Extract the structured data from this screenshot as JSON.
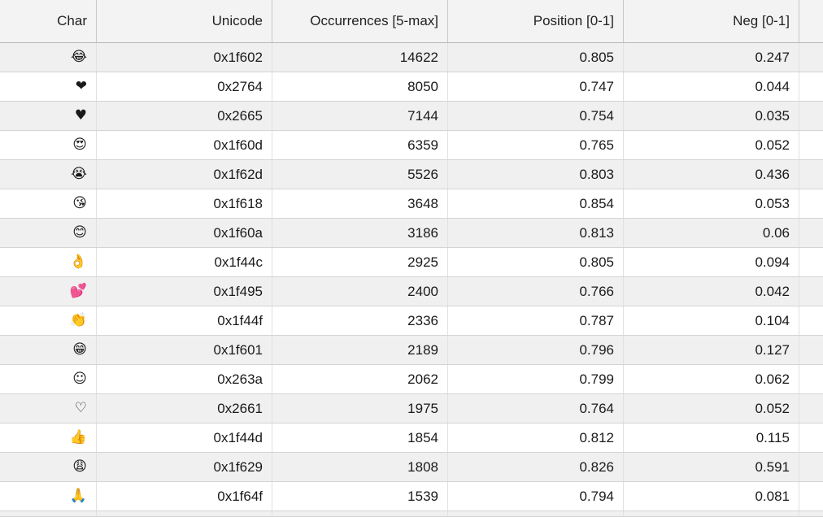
{
  "columns": [
    "Char",
    "Unicode",
    "Occurrences [5-max]",
    "Position [0-1]",
    "Neg [0-1]"
  ],
  "rows": [
    {
      "char": "😂",
      "icon": "face-with-tears-of-joy-icon",
      "unicode": "0x1f602",
      "occurrences": "14622",
      "position": "0.805",
      "neg": "0.247"
    },
    {
      "char": "❤",
      "icon": "heavy-black-heart-icon",
      "unicode": "0x2764",
      "occurrences": "8050",
      "position": "0.747",
      "neg": "0.044"
    },
    {
      "char": "♥",
      "icon": "black-heart-suit-icon",
      "unicode": "0x2665",
      "occurrences": "7144",
      "position": "0.754",
      "neg": "0.035"
    },
    {
      "char": "😍",
      "icon": "heart-eyes-face-icon",
      "unicode": "0x1f60d",
      "occurrences": "6359",
      "position": "0.765",
      "neg": "0.052"
    },
    {
      "char": "😭",
      "icon": "loudly-crying-face-icon",
      "unicode": "0x1f62d",
      "occurrences": "5526",
      "position": "0.803",
      "neg": "0.436"
    },
    {
      "char": "😘",
      "icon": "face-blowing-kiss-icon",
      "unicode": "0x1f618",
      "occurrences": "3648",
      "position": "0.854",
      "neg": "0.053"
    },
    {
      "char": "😊",
      "icon": "smiling-face-with-smiling-eyes-icon",
      "unicode": "0x1f60a",
      "occurrences": "3186",
      "position": "0.813",
      "neg": "0.06"
    },
    {
      "char": "👌",
      "icon": "ok-hand-icon",
      "unicode": "0x1f44c",
      "occurrences": "2925",
      "position": "0.805",
      "neg": "0.094"
    },
    {
      "char": "💕",
      "icon": "two-hearts-icon",
      "unicode": "0x1f495",
      "occurrences": "2400",
      "position": "0.766",
      "neg": "0.042"
    },
    {
      "char": "👏",
      "icon": "clapping-hands-icon",
      "unicode": "0x1f44f",
      "occurrences": "2336",
      "position": "0.787",
      "neg": "0.104"
    },
    {
      "char": "😁",
      "icon": "beaming-face-icon",
      "unicode": "0x1f601",
      "occurrences": "2189",
      "position": "0.796",
      "neg": "0.127"
    },
    {
      "char": "☺",
      "icon": "white-smiling-face-icon",
      "unicode": "0x263a",
      "occurrences": "2062",
      "position": "0.799",
      "neg": "0.062"
    },
    {
      "char": "♡",
      "icon": "white-heart-suit-icon",
      "unicode": "0x2661",
      "occurrences": "1975",
      "position": "0.764",
      "neg": "0.052"
    },
    {
      "char": "👍",
      "icon": "thumbs-up-icon",
      "unicode": "0x1f44d",
      "occurrences": "1854",
      "position": "0.812",
      "neg": "0.115"
    },
    {
      "char": "😩",
      "icon": "weary-face-icon",
      "unicode": "0x1f629",
      "occurrences": "1808",
      "position": "0.826",
      "neg": "0.591"
    },
    {
      "char": "🙏",
      "icon": "folded-hands-icon",
      "unicode": "0x1f64f",
      "occurrences": "1539",
      "position": "0.794",
      "neg": "0.081"
    }
  ]
}
